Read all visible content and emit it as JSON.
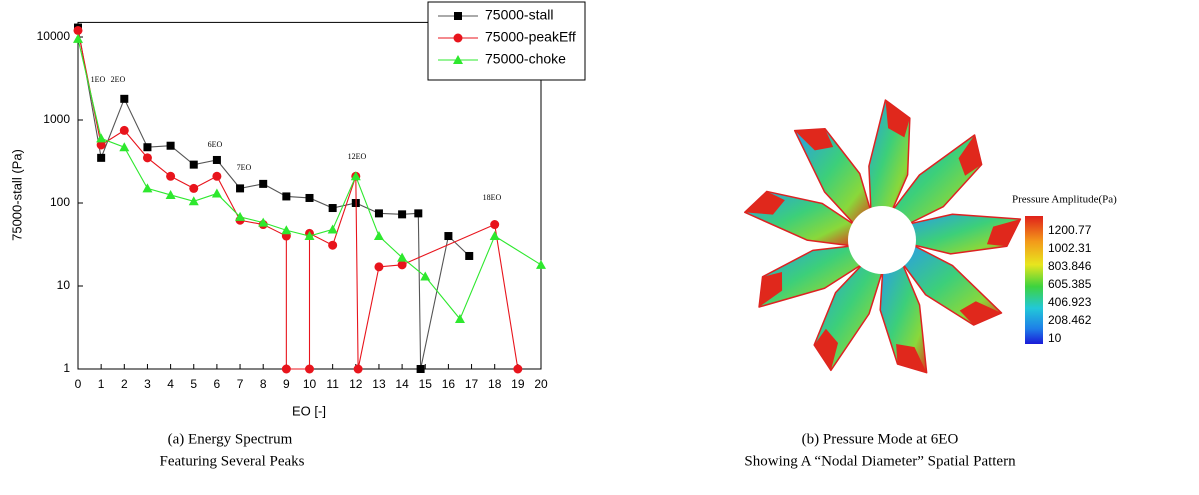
{
  "chart_data": {
    "type": "line",
    "y_label": "75000-stall (Pa)",
    "x_label": "EO [-]",
    "xlim": [
      0,
      20
    ],
    "xticks": [
      0,
      1,
      2,
      3,
      4,
      5,
      6,
      7,
      8,
      9,
      10,
      11,
      12,
      13,
      14,
      15,
      16,
      17,
      18,
      19,
      20
    ],
    "ylim": [
      1,
      15000
    ],
    "yticks": [
      1,
      10,
      100,
      1000,
      10000
    ],
    "log_y": true,
    "grid": false,
    "legend": "upper right",
    "annotations": [
      "1EO",
      "2EO",
      "6EO",
      "7EO",
      "12EO",
      "18EO"
    ],
    "series": [
      {
        "name": "75000-stall",
        "color": "#000000",
        "marker": "square",
        "x": [
          0,
          1,
          2,
          3,
          4,
          5,
          6,
          7,
          8,
          9,
          10,
          11,
          12,
          13,
          14,
          14.7,
          14.8,
          16,
          16.9
        ],
        "values": [
          13000,
          350,
          1800,
          470,
          490,
          290,
          330,
          150,
          170,
          120,
          115,
          87,
          100,
          75,
          73,
          75,
          1,
          40,
          23
        ]
      },
      {
        "name": "75000-peakEff",
        "color": "#e8141c",
        "marker": "circle",
        "x": [
          0,
          1,
          2,
          3,
          4,
          5,
          6,
          7,
          8,
          9,
          9,
          10,
          10,
          11,
          12,
          12.1,
          13,
          14,
          18,
          19
        ],
        "values": [
          12000,
          500,
          750,
          350,
          210,
          150,
          210,
          62,
          55,
          40,
          1,
          1,
          43,
          31,
          210,
          1,
          17,
          18,
          55,
          1
        ]
      },
      {
        "name": "75000-choke",
        "color": "#2ee82e",
        "marker": "triangle",
        "x": [
          0,
          1,
          2,
          3,
          4,
          5,
          6,
          7,
          8,
          9,
          10,
          11,
          12,
          13,
          14,
          15,
          16.5,
          18,
          20
        ],
        "values": [
          9500,
          600,
          470,
          150,
          125,
          105,
          130,
          68,
          58,
          47,
          40,
          48,
          210,
          40,
          22,
          13,
          4,
          40,
          18
        ]
      }
    ]
  },
  "contour": {
    "title": "Pressure Amplitude(Pa)",
    "levels": [
      "1200.77",
      "1002.31",
      "803.846",
      "605.385",
      "406.923",
      "208.462",
      "10"
    ]
  },
  "captions": {
    "a_line1": "(a)   Energy Spectrum",
    "a_line2": "Featuring Several Peaks",
    "b_line1": "(b)   Pressure Mode at 6EO",
    "b_line2": "Showing A “Nodal Diameter” Spatial Pattern"
  }
}
